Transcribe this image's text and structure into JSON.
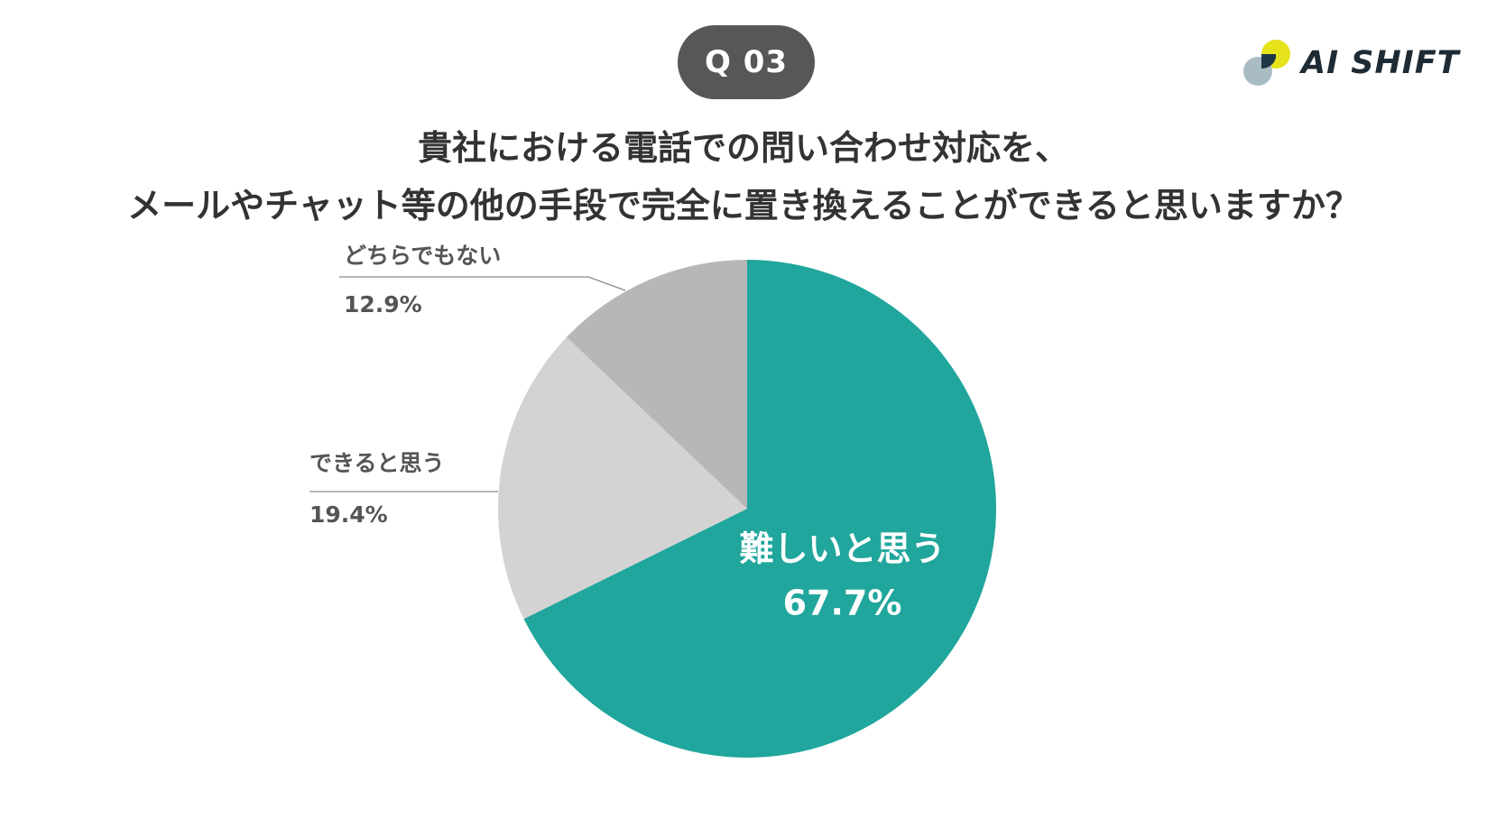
{
  "badge": "Q 03",
  "logo": {
    "text": "AI SHIFT",
    "colors": {
      "yellow": "#e6e21c",
      "navy": "#1e3748",
      "grey": "#a9bcc4"
    }
  },
  "question": {
    "line1": "貴社における電話での問い合わせ対応を、",
    "line2": "メールやチャット等の他の手段で完全に置き換えることができると思いますか？"
  },
  "chart_data": {
    "type": "pie",
    "start": "top, clockwise",
    "slices": [
      {
        "label": "難しいと思う",
        "value": 67.7,
        "value_label": "67.7%",
        "color": "#20a69c",
        "label_placement": "inside"
      },
      {
        "label": "できると思う",
        "value": 19.4,
        "value_label": "19.4%",
        "color": "#d3d3d3",
        "label_placement": "outside-left"
      },
      {
        "label": "どちらでもない",
        "value": 12.9,
        "value_label": "12.9%",
        "color": "#b7b7b7",
        "label_placement": "outside-left"
      }
    ]
  }
}
